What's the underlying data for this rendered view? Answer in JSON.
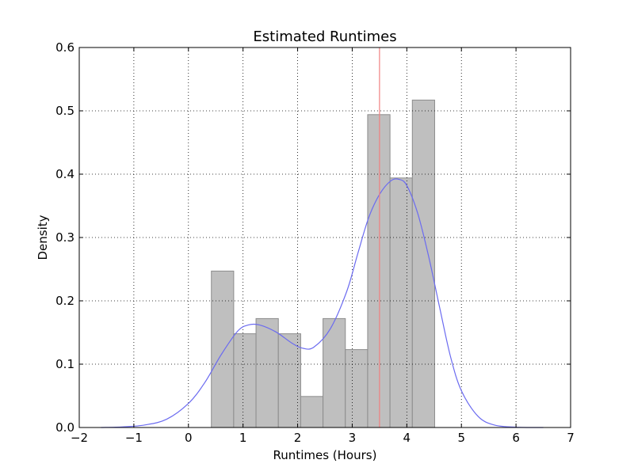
{
  "chart_data": {
    "type": "bar",
    "title": "Estimated Runtimes",
    "xlabel": "Runtimes (Hours)",
    "ylabel": "Density",
    "xlim": [
      -2,
      7
    ],
    "ylim": [
      0,
      0.6
    ],
    "xticks": [
      -2,
      -1,
      0,
      1,
      2,
      3,
      4,
      5,
      6,
      7
    ],
    "xtick_labels": [
      "−2",
      "−1",
      "0",
      "1",
      "2",
      "3",
      "4",
      "5",
      "6",
      "7"
    ],
    "yticks": [
      0,
      0.1,
      0.2,
      0.3,
      0.4,
      0.5,
      0.6
    ],
    "ytick_labels": [
      "0.0",
      "0.1",
      "0.2",
      "0.3",
      "0.4",
      "0.5",
      "0.6"
    ],
    "grid": true,
    "histogram": {
      "bin_edges": [
        0.42,
        0.829,
        1.238,
        1.647,
        2.056,
        2.465,
        2.874,
        3.283,
        3.692,
        4.101,
        4.51
      ],
      "density": [
        0.247,
        0.148,
        0.172,
        0.148,
        0.049,
        0.172,
        0.123,
        0.494,
        0.394,
        0.517
      ],
      "color": "#bfbfbf",
      "edge_color": "#8c8c8c"
    },
    "kde": {
      "color": "#6b6bf0",
      "x": [
        -1.6,
        -1.2,
        -0.8,
        -0.4,
        0.0,
        0.3,
        0.6,
        0.9,
        1.1,
        1.3,
        1.6,
        1.9,
        2.1,
        2.3,
        2.6,
        2.9,
        3.1,
        3.3,
        3.5,
        3.7,
        3.85,
        4.0,
        4.2,
        4.4,
        4.6,
        4.8,
        5.0,
        5.3,
        5.6,
        6.0,
        6.5
      ],
      "y": [
        0.0,
        0.001,
        0.004,
        0.013,
        0.038,
        0.071,
        0.115,
        0.152,
        0.162,
        0.162,
        0.151,
        0.133,
        0.125,
        0.127,
        0.156,
        0.215,
        0.274,
        0.331,
        0.368,
        0.389,
        0.392,
        0.382,
        0.338,
        0.27,
        0.19,
        0.112,
        0.058,
        0.018,
        0.004,
        0.0005,
        0.0
      ]
    },
    "vline": {
      "x": 3.5,
      "color": "#f08080"
    }
  }
}
